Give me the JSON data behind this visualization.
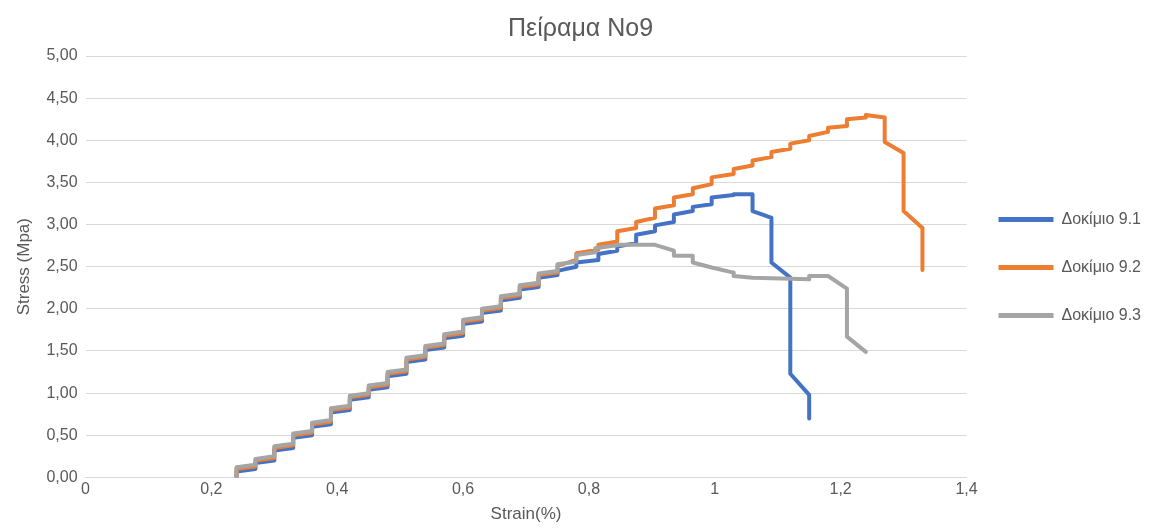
{
  "chart_data": {
    "type": "line",
    "title": "Πείραμα Νο9",
    "xlabel": "Strain(%)",
    "ylabel": "Stress (Mpa)",
    "xlim": [
      0,
      1.4
    ],
    "xticks": [
      0,
      {
        "value": 0.2,
        "label": "0,2"
      },
      {
        "value": 0.4,
        "label": "0,4"
      },
      {
        "value": 0.6,
        "label": "0,6"
      },
      {
        "value": 0.8,
        "label": "0,8"
      },
      1,
      {
        "value": 1.2,
        "label": "1,2"
      },
      {
        "value": 1.4,
        "label": "1,4"
      }
    ],
    "ylim": [
      0,
      5
    ],
    "yticks": [
      {
        "value": 0,
        "label": "0,00"
      },
      {
        "value": 0.5,
        "label": "0,50"
      },
      {
        "value": 1,
        "label": "1,00"
      },
      {
        "value": 1.5,
        "label": "1,50"
      },
      {
        "value": 2,
        "label": "2,00"
      },
      {
        "value": 2.5,
        "label": "2,50"
      },
      {
        "value": 3,
        "label": "3,00"
      },
      {
        "value": 3.5,
        "label": "3,50"
      },
      {
        "value": 4,
        "label": "4,00"
      },
      {
        "value": 4.5,
        "label": "4,50"
      },
      {
        "value": 5,
        "label": "5,00"
      }
    ],
    "grid": "y",
    "legend": "right",
    "marker": "none",
    "line_style": "solid",
    "series": [
      {
        "name": "Δοκίμιο 9.1",
        "color": "#4472c4",
        "x": [
          0.24,
          0.24,
          0.27,
          0.27,
          0.3,
          0.3,
          0.33,
          0.33,
          0.36,
          0.36,
          0.39,
          0.39,
          0.42,
          0.42,
          0.45,
          0.45,
          0.48,
          0.48,
          0.51,
          0.51,
          0.54,
          0.54,
          0.57,
          0.57,
          0.6,
          0.6,
          0.63,
          0.63,
          0.66,
          0.66,
          0.69,
          0.69,
          0.72,
          0.72,
          0.75,
          0.75,
          0.78,
          0.78,
          0.815,
          0.815,
          0.845,
          0.845,
          0.875,
          0.875,
          0.905,
          0.905,
          0.935,
          0.935,
          0.965,
          0.965,
          0.995,
          0.995,
          1.03,
          1.03,
          1.06,
          1.06,
          1.09,
          1.09,
          1.12,
          1.12,
          1.15,
          1.15
        ],
        "values": [
          0,
          0.07,
          0.1,
          0.17,
          0.2,
          0.32,
          0.35,
          0.47,
          0.5,
          0.6,
          0.63,
          0.77,
          0.8,
          0.92,
          0.95,
          1.04,
          1.07,
          1.2,
          1.23,
          1.37,
          1.4,
          1.51,
          1.54,
          1.65,
          1.68,
          1.82,
          1.85,
          1.95,
          1.98,
          2.1,
          2.13,
          2.23,
          2.26,
          2.37,
          2.4,
          2.45,
          2.5,
          2.55,
          2.58,
          2.65,
          2.69,
          2.74,
          2.78,
          2.88,
          2.92,
          2.99,
          3.03,
          3.12,
          3.16,
          3.21,
          3.24,
          3.32,
          3.35,
          3.36,
          3.36,
          3.16,
          3.08,
          2.55,
          2.37,
          1.23,
          0.98,
          0.7
        ]
      },
      {
        "name": "Δοκίμιο 9.2",
        "color": "#ed7d31",
        "x": [
          0.24,
          0.24,
          0.27,
          0.27,
          0.3,
          0.3,
          0.33,
          0.33,
          0.36,
          0.36,
          0.39,
          0.39,
          0.42,
          0.42,
          0.45,
          0.45,
          0.48,
          0.48,
          0.51,
          0.51,
          0.54,
          0.54,
          0.57,
          0.57,
          0.6,
          0.6,
          0.63,
          0.63,
          0.66,
          0.66,
          0.69,
          0.69,
          0.72,
          0.72,
          0.75,
          0.75,
          0.78,
          0.78,
          0.815,
          0.815,
          0.845,
          0.845,
          0.875,
          0.875,
          0.905,
          0.905,
          0.935,
          0.935,
          0.965,
          0.965,
          0.995,
          0.995,
          1.03,
          1.03,
          1.06,
          1.06,
          1.09,
          1.09,
          1.12,
          1.12,
          1.15,
          1.15,
          1.18,
          1.18,
          1.21,
          1.21,
          1.24,
          1.24,
          1.27,
          1.27,
          1.3,
          1.3,
          1.33,
          1.33
        ],
        "values": [
          0,
          0.1,
          0.13,
          0.2,
          0.23,
          0.35,
          0.38,
          0.5,
          0.53,
          0.63,
          0.66,
          0.8,
          0.83,
          0.95,
          0.98,
          1.07,
          1.1,
          1.23,
          1.26,
          1.4,
          1.43,
          1.54,
          1.57,
          1.68,
          1.71,
          1.85,
          1.88,
          1.98,
          2.01,
          2.13,
          2.16,
          2.26,
          2.29,
          2.4,
          2.43,
          2.51,
          2.58,
          2.66,
          2.7,
          2.76,
          2.8,
          2.92,
          2.96,
          3.03,
          3.08,
          3.19,
          3.23,
          3.32,
          3.36,
          3.43,
          3.48,
          3.56,
          3.6,
          3.66,
          3.7,
          3.76,
          3.8,
          3.86,
          3.9,
          3.96,
          4.0,
          4.05,
          4.1,
          4.15,
          4.17,
          4.25,
          4.27,
          4.3,
          4.27,
          3.98,
          3.85,
          3.16,
          2.96,
          2.46
        ]
      },
      {
        "name": "Δοκίμιο 9.3",
        "color": "#a5a5a5",
        "x": [
          0.24,
          0.24,
          0.27,
          0.27,
          0.3,
          0.3,
          0.33,
          0.33,
          0.36,
          0.36,
          0.39,
          0.39,
          0.42,
          0.42,
          0.45,
          0.45,
          0.48,
          0.48,
          0.51,
          0.51,
          0.54,
          0.54,
          0.57,
          0.57,
          0.6,
          0.6,
          0.63,
          0.63,
          0.66,
          0.66,
          0.69,
          0.69,
          0.72,
          0.72,
          0.75,
          0.75,
          0.78,
          0.78,
          0.81,
          0.81,
          0.85,
          0.905,
          0.935,
          0.935,
          0.965,
          0.965,
          0.995,
          1.03,
          1.03,
          1.06,
          1.15,
          1.15,
          1.18,
          1.21,
          1.21,
          1.24
        ],
        "values": [
          0,
          0.12,
          0.15,
          0.22,
          0.25,
          0.37,
          0.4,
          0.52,
          0.55,
          0.65,
          0.68,
          0.82,
          0.85,
          0.97,
          1.0,
          1.09,
          1.12,
          1.25,
          1.28,
          1.42,
          1.45,
          1.56,
          1.59,
          1.7,
          1.73,
          1.87,
          1.9,
          2.0,
          2.03,
          2.15,
          2.18,
          2.28,
          2.31,
          2.42,
          2.45,
          2.53,
          2.56,
          2.64,
          2.67,
          2.72,
          2.76,
          2.76,
          2.69,
          2.63,
          2.63,
          2.55,
          2.49,
          2.43,
          2.39,
          2.37,
          2.35,
          2.39,
          2.39,
          2.24,
          1.67,
          1.49
        ]
      }
    ]
  }
}
